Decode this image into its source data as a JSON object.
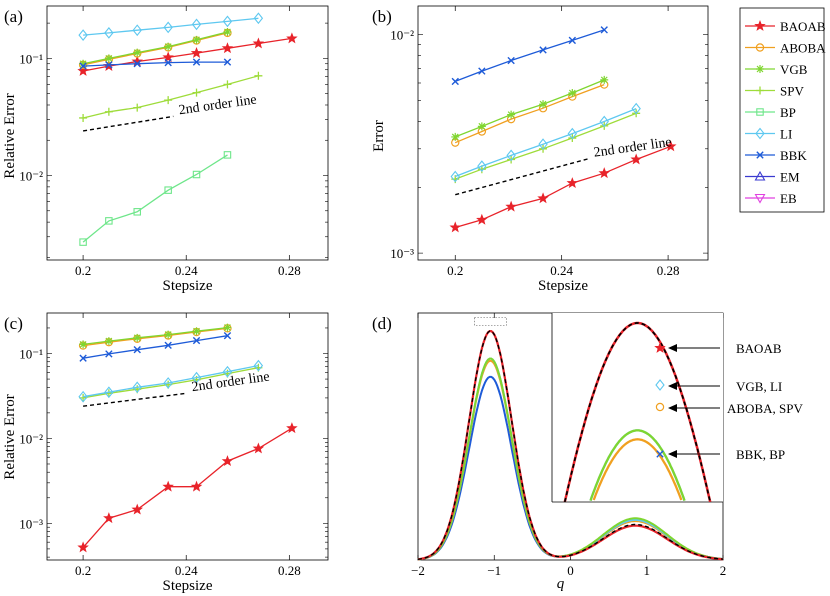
{
  "colors": {
    "BAOAB": "#e8232a",
    "ABOBA": "#f0a020",
    "VGB": "#7fd630",
    "SPV": "#9edc3a",
    "BP": "#6ee68a",
    "LI": "#5ec8f0",
    "BBK": "#1e5bd8",
    "EM": "#3a3ad0",
    "EB": "#e040e0"
  },
  "legend": {
    "entries": [
      {
        "key": "BAOAB",
        "label": "BAOAB",
        "marker": "star"
      },
      {
        "key": "ABOBA",
        "label": "ABOBA",
        "marker": "circle"
      },
      {
        "key": "VGB",
        "label": "VGB",
        "marker": "asterisk"
      },
      {
        "key": "SPV",
        "label": "SPV",
        "marker": "plus"
      },
      {
        "key": "BP",
        "label": "BP",
        "marker": "square"
      },
      {
        "key": "LI",
        "label": "LI",
        "marker": "diamond"
      },
      {
        "key": "BBK",
        "label": "BBK",
        "marker": "x"
      },
      {
        "key": "EM",
        "label": "EM",
        "marker": "triangle"
      },
      {
        "key": "EB",
        "label": "EB",
        "marker": "triangle-down"
      }
    ]
  },
  "chart_data": [
    {
      "panel": "(a)",
      "type": "line",
      "xlabel": "Stepsize",
      "ylabel": "Relative Error",
      "yscale": "log",
      "xlim": [
        0.186,
        0.295
      ],
      "ylim": [
        0.0019,
        0.28
      ],
      "xticks": [
        0.2,
        0.24,
        0.28
      ],
      "xticklabels": [
        "0.2",
        "0.24",
        "0.28"
      ],
      "yticks": [
        0.01,
        0.1
      ],
      "yticklabels": [
        "10⁻²",
        "10⁻¹"
      ],
      "annotation": "2nd order line",
      "ref_line": {
        "x": [
          0.2,
          0.235
        ],
        "y": [
          0.024,
          0.032
        ]
      },
      "series": [
        {
          "name": "BAOAB",
          "x": [
            0.2,
            0.21,
            0.221,
            0.233,
            0.244,
            0.256,
            0.268,
            0.281
          ],
          "values": [
            0.078,
            0.086,
            0.094,
            0.102,
            0.111,
            0.122,
            0.134,
            0.148
          ]
        },
        {
          "name": "ABOBA",
          "x": [
            0.2,
            0.21,
            0.221,
            0.233,
            0.244,
            0.256
          ],
          "values": [
            0.088,
            0.098,
            0.11,
            0.124,
            0.142,
            0.165
          ]
        },
        {
          "name": "VGB",
          "x": [
            0.2,
            0.21,
            0.221,
            0.233,
            0.244,
            0.256
          ],
          "values": [
            0.09,
            0.1,
            0.112,
            0.126,
            0.144,
            0.168
          ]
        },
        {
          "name": "SPV",
          "x": [
            0.2,
            0.21,
            0.221,
            0.233,
            0.244,
            0.256,
            0.268
          ],
          "values": [
            0.031,
            0.035,
            0.038,
            0.044,
            0.051,
            0.06,
            0.071
          ]
        },
        {
          "name": "BP",
          "x": [
            0.2,
            0.21,
            0.221,
            0.233,
            0.244,
            0.256
          ],
          "values": [
            0.0027,
            0.0041,
            0.0049,
            0.0075,
            0.0102,
            0.015
          ]
        },
        {
          "name": "LI",
          "x": [
            0.2,
            0.21,
            0.221,
            0.233,
            0.244,
            0.256,
            0.268
          ],
          "values": [
            0.158,
            0.165,
            0.174,
            0.184,
            0.195,
            0.207,
            0.22
          ]
        },
        {
          "name": "BBK",
          "x": [
            0.2,
            0.21,
            0.221,
            0.233,
            0.244,
            0.256
          ],
          "values": [
            0.086,
            0.088,
            0.09,
            0.092,
            0.093,
            0.093
          ]
        }
      ]
    },
    {
      "panel": "(b)",
      "type": "line",
      "xlabel": "Stepsize",
      "ylabel": "Error",
      "yscale": "log",
      "xlim": [
        0.186,
        0.295
      ],
      "ylim": [
        0.00093,
        0.0135
      ],
      "xticks": [
        0.2,
        0.24,
        0.28
      ],
      "xticklabels": [
        "0.2",
        "0.24",
        "0.28"
      ],
      "yticks": [
        0.001,
        0.01
      ],
      "yticklabels": [
        "10⁻³",
        "10⁻²"
      ],
      "annotation": "2nd order line",
      "ref_line": {
        "x": [
          0.2,
          0.25
        ],
        "y": [
          0.00185,
          0.0027
        ]
      },
      "series": [
        {
          "name": "BAOAB",
          "x": [
            0.2,
            0.21,
            0.221,
            0.233,
            0.244,
            0.256,
            0.268,
            0.281
          ],
          "values": [
            0.00131,
            0.00142,
            0.00163,
            0.00178,
            0.00209,
            0.00232,
            0.00268,
            0.00308
          ]
        },
        {
          "name": "ABOBA",
          "x": [
            0.2,
            0.21,
            0.221,
            0.233,
            0.244,
            0.256
          ],
          "values": [
            0.0032,
            0.0036,
            0.0041,
            0.0046,
            0.0052,
            0.0059
          ]
        },
        {
          "name": "VGB",
          "x": [
            0.2,
            0.21,
            0.221,
            0.233,
            0.244,
            0.256
          ],
          "values": [
            0.0034,
            0.0038,
            0.0043,
            0.0048,
            0.0054,
            0.0062
          ]
        },
        {
          "name": "SPV",
          "x": [
            0.2,
            0.21,
            0.221,
            0.233,
            0.244,
            0.256,
            0.268
          ],
          "values": [
            0.00218,
            0.00242,
            0.00268,
            0.003,
            0.00336,
            0.00382,
            0.00436
          ]
        },
        {
          "name": "LI",
          "x": [
            0.2,
            0.21,
            0.221,
            0.233,
            0.244,
            0.256,
            0.268
          ],
          "values": [
            0.00224,
            0.0025,
            0.0028,
            0.00315,
            0.00352,
            0.004,
            0.00458
          ]
        },
        {
          "name": "BBK",
          "x": [
            0.2,
            0.21,
            0.221,
            0.233,
            0.244,
            0.256
          ],
          "values": [
            0.0061,
            0.0068,
            0.0076,
            0.0085,
            0.0094,
            0.0105
          ]
        }
      ]
    },
    {
      "panel": "(c)",
      "type": "line",
      "xlabel": "Stepsize",
      "ylabel": "Relative Error",
      "yscale": "log",
      "xlim": [
        0.186,
        0.295
      ],
      "ylim": [
        0.00037,
        0.3
      ],
      "xticks": [
        0.2,
        0.24,
        0.28
      ],
      "xticklabels": [
        "0.2",
        "0.24",
        "0.28"
      ],
      "yticks": [
        0.001,
        0.01,
        0.1
      ],
      "yticklabels": [
        "10⁻³",
        "10⁻²",
        "10⁻¹"
      ],
      "annotation": "2nd order line",
      "ref_line": {
        "x": [
          0.2,
          0.24
        ],
        "y": [
          0.024,
          0.034
        ]
      },
      "series": [
        {
          "name": "BAOAB",
          "x": [
            0.2,
            0.21,
            0.221,
            0.233,
            0.244,
            0.256,
            0.268,
            0.281
          ],
          "values": [
            0.00052,
            0.00115,
            0.00145,
            0.0027,
            0.0027,
            0.0054,
            0.0076,
            0.0132
          ]
        },
        {
          "name": "ABOBA",
          "x": [
            0.2,
            0.21,
            0.221,
            0.233,
            0.244,
            0.256
          ],
          "values": [
            0.124,
            0.136,
            0.149,
            0.163,
            0.179,
            0.198
          ]
        },
        {
          "name": "VGB",
          "x": [
            0.2,
            0.21,
            0.221,
            0.233,
            0.244,
            0.256
          ],
          "values": [
            0.128,
            0.14,
            0.153,
            0.167,
            0.183,
            0.202
          ]
        },
        {
          "name": "SPV",
          "x": [
            0.2,
            0.21,
            0.221,
            0.233,
            0.244,
            0.256,
            0.268
          ],
          "values": [
            0.03,
            0.034,
            0.038,
            0.043,
            0.049,
            0.058,
            0.068
          ]
        },
        {
          "name": "LI",
          "x": [
            0.2,
            0.21,
            0.221,
            0.233,
            0.244,
            0.256,
            0.268
          ],
          "values": [
            0.031,
            0.035,
            0.04,
            0.045,
            0.052,
            0.061,
            0.072
          ]
        },
        {
          "name": "BBK",
          "x": [
            0.2,
            0.21,
            0.221,
            0.233,
            0.244,
            0.256
          ],
          "values": [
            0.088,
            0.099,
            0.111,
            0.125,
            0.142,
            0.162
          ]
        }
      ]
    },
    {
      "panel": "(d)",
      "type": "line",
      "xlabel": "q",
      "ylabel": "",
      "xlim": [
        -2,
        2
      ],
      "ylim": [
        0,
        1
      ],
      "xticks": [
        -2,
        -1,
        0,
        1,
        2
      ],
      "xticklabels": [
        "−2",
        "−1",
        "0",
        "1",
        "2"
      ],
      "series": [
        {
          "name": "Exact (dashed)",
          "peak1": 1.0,
          "peak2": 0.155
        },
        {
          "name": "BAOAB",
          "peak1": 1.0,
          "peak2": 0.15
        },
        {
          "name": "VGB",
          "peak1": 0.88,
          "peak2": 0.182
        },
        {
          "name": "LI",
          "peak1": 0.88,
          "peak2": 0.175
        },
        {
          "name": "ABOBA",
          "peak1": 0.87,
          "peak2": 0.17
        },
        {
          "name": "BBK",
          "peak1": 0.8,
          "peak2": 0.175
        }
      ],
      "inset_labels": [
        {
          "text": "BAOAB"
        },
        {
          "text": "VGB, LI"
        },
        {
          "text": "ABOBA, SPV"
        },
        {
          "text": "BBK, BP"
        }
      ]
    }
  ]
}
